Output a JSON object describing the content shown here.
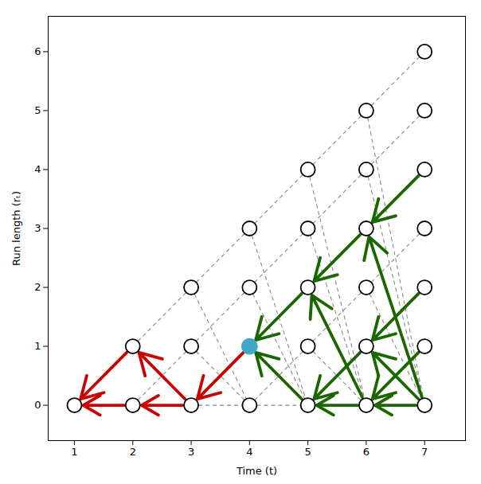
{
  "chart_data": {
    "type": "trellis",
    "xlabel": "Time (t)",
    "ylabel": "Run length (rₜ)",
    "xlim": [
      0.55,
      7.7
    ],
    "ylim": [
      -0.6,
      6.6
    ],
    "xticks": [
      1,
      2,
      3,
      4,
      5,
      6,
      7
    ],
    "yticks": [
      0,
      1,
      2,
      3,
      4,
      5,
      6
    ],
    "edges": {
      "color": "#888888",
      "line_style": "dashed",
      "segments": [
        [
          1,
          0,
          2,
          1
        ],
        [
          1,
          0,
          2,
          0
        ],
        [
          2,
          0,
          3,
          1
        ],
        [
          2,
          0,
          3,
          0
        ],
        [
          2,
          1,
          3,
          2
        ],
        [
          2,
          1,
          3,
          0
        ],
        [
          3,
          0,
          4,
          1
        ],
        [
          3,
          0,
          4,
          0
        ],
        [
          3,
          1,
          4,
          2
        ],
        [
          3,
          1,
          4,
          0
        ],
        [
          3,
          2,
          4,
          3
        ],
        [
          3,
          2,
          4,
          0
        ],
        [
          4,
          0,
          5,
          1
        ],
        [
          4,
          0,
          5,
          0
        ],
        [
          4,
          1,
          5,
          2
        ],
        [
          4,
          1,
          5,
          0
        ],
        [
          4,
          2,
          5,
          3
        ],
        [
          4,
          2,
          5,
          0
        ],
        [
          4,
          3,
          5,
          4
        ],
        [
          4,
          3,
          5,
          0
        ],
        [
          5,
          0,
          6,
          1
        ],
        [
          5,
          0,
          6,
          0
        ],
        [
          5,
          1,
          6,
          2
        ],
        [
          5,
          1,
          6,
          0
        ],
        [
          5,
          2,
          6,
          3
        ],
        [
          5,
          2,
          6,
          0
        ],
        [
          5,
          3,
          6,
          4
        ],
        [
          5,
          3,
          6,
          0
        ],
        [
          5,
          4,
          6,
          5
        ],
        [
          5,
          4,
          6,
          0
        ],
        [
          6,
          0,
          7,
          1
        ],
        [
          6,
          0,
          7,
          0
        ],
        [
          6,
          1,
          7,
          2
        ],
        [
          6,
          1,
          7,
          0
        ],
        [
          6,
          2,
          7,
          3
        ],
        [
          6,
          2,
          7,
          0
        ],
        [
          6,
          3,
          7,
          4
        ],
        [
          6,
          3,
          7,
          0
        ],
        [
          6,
          4,
          7,
          5
        ],
        [
          6,
          4,
          7,
          0
        ],
        [
          6,
          5,
          7,
          6
        ],
        [
          6,
          5,
          7,
          0
        ]
      ]
    },
    "arrows": [
      {
        "color": "#cc0000",
        "segments": [
          [
            2,
            1,
            1,
            0
          ],
          [
            2,
            0,
            1,
            0
          ],
          [
            3,
            0,
            2,
            1
          ],
          [
            3,
            0,
            2,
            0
          ],
          [
            4,
            1,
            3,
            0
          ]
        ]
      },
      {
        "color": "#1a6600",
        "segments": [
          [
            5,
            2,
            4,
            1
          ],
          [
            5,
            0,
            4,
            1
          ],
          [
            6,
            3,
            5,
            2
          ],
          [
            6,
            0,
            5,
            2
          ],
          [
            6,
            1,
            5,
            0
          ],
          [
            6,
            0,
            5,
            0
          ],
          [
            7,
            4,
            6,
            3
          ],
          [
            7,
            0,
            6,
            3
          ],
          [
            7,
            2,
            6,
            1
          ],
          [
            7,
            0,
            6,
            1
          ],
          [
            7,
            1,
            6,
            0
          ],
          [
            7,
            0,
            6,
            0
          ]
        ]
      }
    ],
    "nodes": {
      "color": "black",
      "marker": "open circle",
      "points": [
        [
          1,
          0
        ],
        [
          2,
          0
        ],
        [
          2,
          1
        ],
        [
          3,
          0
        ],
        [
          3,
          1
        ],
        [
          3,
          2
        ],
        [
          4,
          0
        ],
        [
          4,
          1
        ],
        [
          4,
          2
        ],
        [
          4,
          3
        ],
        [
          5,
          0
        ],
        [
          5,
          1
        ],
        [
          5,
          2
        ],
        [
          5,
          3
        ],
        [
          5,
          4
        ],
        [
          6,
          0
        ],
        [
          6,
          1
        ],
        [
          6,
          2
        ],
        [
          6,
          3
        ],
        [
          6,
          4
        ],
        [
          6,
          5
        ],
        [
          7,
          0
        ],
        [
          7,
          1
        ],
        [
          7,
          2
        ],
        [
          7,
          3
        ],
        [
          7,
          4
        ],
        [
          7,
          5
        ],
        [
          7,
          6
        ]
      ]
    },
    "highlight": {
      "color": "#3fa9c8",
      "points": [
        [
          4,
          1
        ]
      ]
    }
  }
}
